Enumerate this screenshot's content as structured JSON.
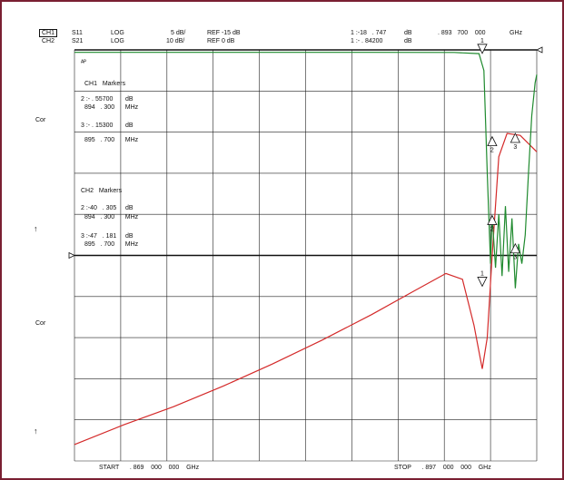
{
  "header": {
    "ch1": {
      "label": "CH1",
      "param": "S11",
      "format": "LOG",
      "scale": "5 dB/",
      "ref": "REF -15 dB",
      "marker": "1 :-18   . 747",
      "unit": "dB"
    },
    "ch2": {
      "label": "CH2",
      "param": "S21",
      "format": "LOG",
      "scale": "10 dB/",
      "ref": "REF 0 dB",
      "marker": "1 :- . 84200",
      "unit": "dB"
    },
    "marker_freq": ". 893   700    000",
    "freq_unit": "GHz"
  },
  "side_labels": {
    "cor1": "Cor",
    "arrow1": "↑",
    "cor2": "Cor",
    "arrow2": "↑"
  },
  "panel_glyph": "ᴬᴾ",
  "ch1_markers": {
    "title": "CH1   Markers",
    "m2_val": "2 :- . 55700       dB",
    "m2_freq": "894   . 300      MHz",
    "m3_val": "3 :- . 15300       dB",
    "m3_freq": "895   . 700      MHz"
  },
  "ch2_markers": {
    "title": "CH2   Markers",
    "m2_val": "2 :-40   . 305     dB",
    "m2_freq": "894   . 300      MHz",
    "m3_val": "3 :-47   . 181     dB",
    "m3_freq": "895   . 700      MHz"
  },
  "footer": {
    "start": "START      . 869    000    000    GHz",
    "stop": "STOP      . 897    000    000    GHz"
  },
  "colors": {
    "frame": "#7a1f32",
    "ch1": "#d42a2a",
    "ch2": "#1f8a2e"
  },
  "chart_data": {
    "type": "line",
    "title": "",
    "xlabel": "",
    "ylabel": "",
    "x_unit": "GHz",
    "xlim": [
      0.869,
      0.897
    ],
    "grid": true,
    "series": [
      {
        "name": "CH1",
        "param": "S11",
        "scale_db_per_div": 5,
        "ref_db": -15,
        "ylim": [
          -40,
          10
        ],
        "x": [
          0.869,
          0.872,
          0.875,
          0.878,
          0.881,
          0.884,
          0.887,
          0.8895,
          0.8915,
          0.8925,
          0.8932,
          0.8937,
          0.894,
          0.8943,
          0.8947,
          0.8952,
          0.896,
          0.897
        ],
        "values": [
          -38.0,
          -35.6,
          -33.4,
          -30.9,
          -28.2,
          -25.3,
          -22.2,
          -19.4,
          -17.2,
          -17.9,
          -23.5,
          -28.8,
          -25.0,
          -15.0,
          -3.0,
          -0.15,
          -0.4,
          -2.4
        ],
        "markers": [
          {
            "id": "1",
            "freq_ghz": 0.8937,
            "db": -18.747
          },
          {
            "id": "2",
            "freq_ghz": 0.8943,
            "db": -0.557
          },
          {
            "id": "3",
            "freq_ghz": 0.8957,
            "db": -0.153
          }
        ]
      },
      {
        "name": "CH2",
        "param": "S21",
        "scale_db_per_div": 10,
        "ref_db": 0,
        "ylim": [
          -100,
          0
        ],
        "x": [
          0.869,
          0.875,
          0.881,
          0.887,
          0.892,
          0.8935,
          0.8938,
          0.894,
          0.8942,
          0.8943,
          0.8945,
          0.8947,
          0.8949,
          0.8951,
          0.8953,
          0.8955,
          0.8957,
          0.8959,
          0.8961,
          0.8963,
          0.8965,
          0.8967,
          0.8969,
          0.897
        ],
        "values": [
          -0.6,
          -0.6,
          -0.6,
          -0.6,
          -0.62,
          -0.9,
          -5,
          -30,
          -52,
          -40.3,
          -53,
          -40,
          -55,
          -38,
          -54,
          -41,
          -58,
          -47.2,
          -52,
          -45,
          -30,
          -16,
          -8,
          -6
        ],
        "markers": [
          {
            "id": "1",
            "freq_ghz": 0.8937,
            "db": -0.842
          },
          {
            "id": "2",
            "freq_ghz": 0.8943,
            "db": -40.305
          },
          {
            "id": "3",
            "freq_ghz": 0.8957,
            "db": -47.181
          }
        ]
      }
    ]
  }
}
